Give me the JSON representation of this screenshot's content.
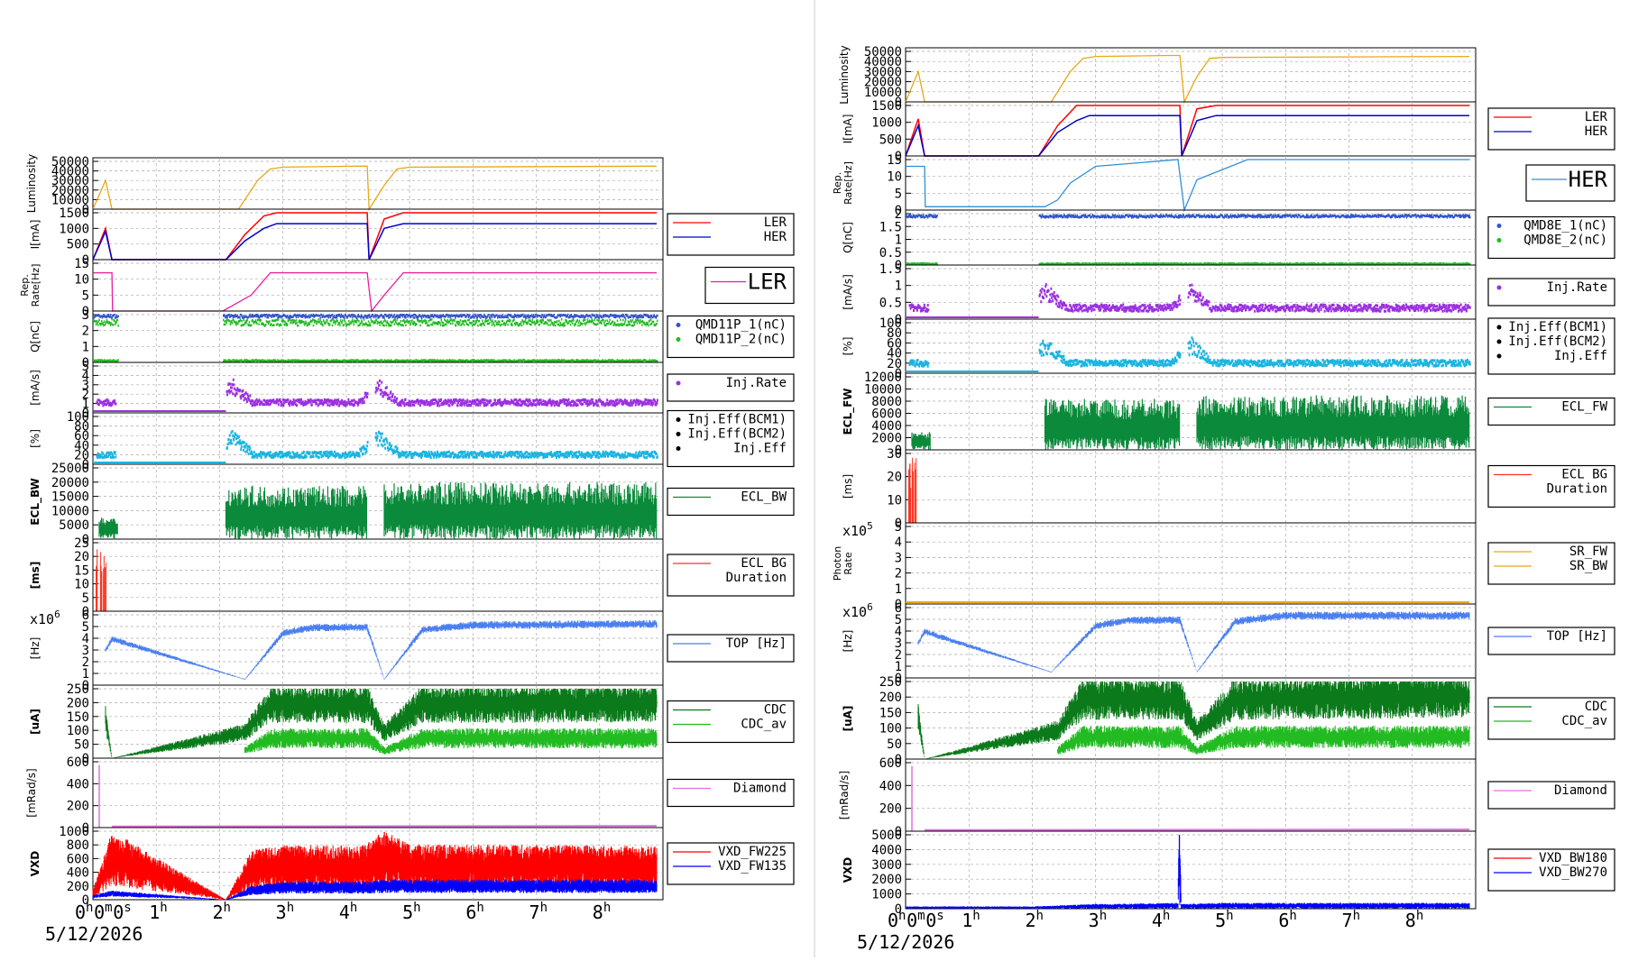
{
  "colors": {
    "luminosity": "#e6a817",
    "ler": "#ff0000",
    "her": "#0000cc",
    "rep_ler": "#e81c9b",
    "rep_her": "#2f8fd8",
    "charge1": "#3355cc",
    "charge2": "#22bb22",
    "inj_rate": "#9b30e0",
    "inj_eff": "#1ab4e0",
    "ecl": "#0a8a3a",
    "ecl_bg": "#ff3322",
    "top": "#4a7ff0",
    "cdc": "#22bb22",
    "cdc_av": "#0a7a1a",
    "diamond": "#e070e0",
    "vxd_red": "#ff0000",
    "vxd_blue": "#0000ff",
    "sr_fw": "#e6a817",
    "grid": "#aaaaaa",
    "frame": "#000000"
  },
  "x_axis": {
    "tick_labels": [
      "0h0m0s",
      "1h",
      "2h",
      "3h",
      "4h",
      "5h",
      "6h",
      "7h",
      "8h"
    ],
    "date": "5/12/2026"
  },
  "left_chart": {
    "panels": [
      {
        "id": "lum",
        "ylabel": "Luminosity",
        "yticks": [
          "50000",
          "40000",
          "30000",
          "20000",
          "10000",
          "0"
        ],
        "legend": [],
        "series": [
          {
            "key": "luminosity",
            "color": "#e6a817"
          }
        ]
      },
      {
        "id": "cur",
        "ylabel": "I[mA]",
        "yticks": [
          "1500",
          "1000",
          "500",
          "0"
        ],
        "legend": [
          "LER",
          "HER"
        ],
        "series": [
          {
            "key": "ler",
            "color": "#ff0000"
          },
          {
            "key": "her",
            "color": "#0000cc"
          }
        ]
      },
      {
        "id": "rep",
        "ylabel": "Rep. Rate[Hz]",
        "yticks": [
          "15",
          "10",
          "5",
          "0"
        ],
        "legend": [
          "LER"
        ],
        "legend_big": true,
        "series": [
          {
            "key": "rep",
            "color": "#e81c9b"
          }
        ]
      },
      {
        "id": "q",
        "ylabel": "Q[nC]",
        "yticks": [
          "3",
          "2",
          "1",
          "0"
        ],
        "legend": [
          "QMD11P_1(nC)",
          "QMD11P_2(nC)"
        ],
        "series": [
          {
            "key": "q1",
            "color": "#3355cc"
          },
          {
            "key": "q2",
            "color": "#22bb22"
          }
        ]
      },
      {
        "id": "injr",
        "ylabel": "[mA/s]",
        "yticks": [
          "5",
          "4",
          "3",
          "2",
          "1",
          "0"
        ],
        "legend": [
          "Inj.Rate"
        ],
        "series": [
          {
            "key": "injr",
            "color": "#9b30e0"
          }
        ]
      },
      {
        "id": "inje",
        "ylabel": "[%]",
        "yticks": [
          "100",
          "80",
          "60",
          "40",
          "20",
          "0"
        ],
        "legend": [
          "Inj.Eff(BCM1)",
          "Inj.Eff(BCM2)",
          "Inj.Eff"
        ],
        "series": [
          {
            "key": "inje",
            "color": "#1ab4e0"
          }
        ]
      },
      {
        "id": "ecl",
        "ylabel": "ECL_BW",
        "yticks": [
          "25000",
          "20000",
          "15000",
          "10000",
          "5000",
          "0"
        ],
        "legend": [
          "ECL_BW"
        ],
        "series": [
          {
            "key": "ecl",
            "color": "#0a8a3a"
          }
        ]
      },
      {
        "id": "eclbg",
        "ylabel": "[ms]",
        "yticks": [
          "25",
          "20",
          "15",
          "10",
          "5",
          "0"
        ],
        "legend": [
          "ECL BG",
          "Duration"
        ],
        "series": [
          {
            "key": "eclbg",
            "color": "#ff3322"
          }
        ]
      },
      {
        "id": "top",
        "ylabel": "[Hz]",
        "yticks": [
          "6",
          "5",
          "4",
          "3",
          "2",
          "1",
          "0"
        ],
        "exponent": "x10^6",
        "legend": [
          "TOP [Hz]"
        ],
        "series": [
          {
            "key": "top",
            "color": "#4a7ff0"
          }
        ]
      },
      {
        "id": "cdc",
        "ylabel": "[uA]",
        "yticks": [
          "250",
          "200",
          "150",
          "100",
          "50",
          "0"
        ],
        "legend": [
          "CDC",
          "CDC_av"
        ],
        "series": [
          {
            "key": "cdc",
            "color": "#0a7a1a"
          },
          {
            "key": "cdcav",
            "color": "#22bb22"
          }
        ]
      },
      {
        "id": "dia",
        "ylabel": "[mRad/s]",
        "yticks": [
          "600",
          "400",
          "200",
          "0"
        ],
        "legend": [
          "Diamond"
        ],
        "series": [
          {
            "key": "dia",
            "color": "#e070e0"
          }
        ]
      },
      {
        "id": "vxd",
        "ylabel": "VXD",
        "yticks": [
          "1000",
          "800",
          "600",
          "400",
          "200",
          "0"
        ],
        "legend": [
          "VXD_FW225",
          "VXD_FW135"
        ],
        "series": [
          {
            "key": "vxdr",
            "color": "#ff0000"
          },
          {
            "key": "vxdb",
            "color": "#0000ff"
          }
        ]
      }
    ]
  },
  "right_chart": {
    "panels": [
      {
        "id": "lum",
        "ylabel": "Luminosity",
        "yticks": [
          "50000",
          "40000",
          "30000",
          "20000",
          "10000",
          "0"
        ],
        "legend": [],
        "series": [
          {
            "key": "luminosity",
            "color": "#e6a817"
          }
        ]
      },
      {
        "id": "cur",
        "ylabel": "I[mA]",
        "yticks": [
          "1500",
          "1000",
          "500",
          "0"
        ],
        "legend": [
          "LER",
          "HER"
        ],
        "series": [
          {
            "key": "ler",
            "color": "#ff0000"
          },
          {
            "key": "her",
            "color": "#0000cc"
          }
        ]
      },
      {
        "id": "rep",
        "ylabel": "Rep. Rate[Hz]",
        "yticks": [
          "15",
          "10",
          "5",
          "0"
        ],
        "legend": [
          "HER"
        ],
        "legend_big": true,
        "series": [
          {
            "key": "rep",
            "color": "#2f8fd8"
          }
        ]
      },
      {
        "id": "q",
        "ylabel": "Q[nC]",
        "yticks": [
          "2",
          "1.5",
          "1",
          "0.5",
          "0"
        ],
        "legend": [
          "QMD8E_1(nC)",
          "QMD8E_2(nC)"
        ],
        "series": [
          {
            "key": "q1",
            "color": "#3355cc"
          },
          {
            "key": "q2",
            "color": "#22bb22"
          }
        ]
      },
      {
        "id": "injr",
        "ylabel": "[mA/s]",
        "yticks": [
          "1.5",
          "1",
          "0.5",
          "0"
        ],
        "legend": [
          "Inj.Rate"
        ],
        "series": [
          {
            "key": "injr",
            "color": "#9b30e0"
          }
        ]
      },
      {
        "id": "inje",
        "ylabel": "[%]",
        "yticks": [
          "100",
          "80",
          "60",
          "40",
          "20",
          "0"
        ],
        "legend": [
          "Inj.Eff(BCM1)",
          "Inj.Eff(BCM2)",
          "Inj.Eff"
        ],
        "series": [
          {
            "key": "inje",
            "color": "#1ab4e0"
          }
        ]
      },
      {
        "id": "ecl",
        "ylabel": "ECL_FW",
        "yticks": [
          "12000",
          "10000",
          "8000",
          "6000",
          "4000",
          "2000",
          "0"
        ],
        "legend": [
          "ECL_FW"
        ],
        "series": [
          {
            "key": "ecl",
            "color": "#0a8a3a"
          }
        ]
      },
      {
        "id": "eclbg",
        "ylabel": "[ms]",
        "yticks": [
          "30",
          "20",
          "10",
          "0"
        ],
        "legend": [
          "ECL BG",
          "Duration"
        ],
        "series": [
          {
            "key": "eclbg",
            "color": "#ff3322"
          }
        ]
      },
      {
        "id": "photon",
        "ylabel": "Photon Rate",
        "yticks": [
          "5",
          "4",
          "3",
          "2",
          "1",
          "0"
        ],
        "exponent": "x10^5",
        "legend": [
          "SR_FW",
          "SR_BW"
        ],
        "series": [
          {
            "key": "sr",
            "color": "#e6a817"
          }
        ]
      },
      {
        "id": "top",
        "ylabel": "[Hz]",
        "yticks": [
          "6",
          "5",
          "4",
          "3",
          "2",
          "1",
          "0"
        ],
        "exponent": "x10^6",
        "legend": [
          "TOP [Hz]"
        ],
        "series": [
          {
            "key": "top",
            "color": "#4a7ff0"
          }
        ]
      },
      {
        "id": "cdc",
        "ylabel": "[uA]",
        "yticks": [
          "250",
          "200",
          "150",
          "100",
          "50",
          "0"
        ],
        "legend": [
          "CDC",
          "CDC_av"
        ],
        "series": [
          {
            "key": "cdc",
            "color": "#0a7a1a"
          },
          {
            "key": "cdcav",
            "color": "#22bb22"
          }
        ]
      },
      {
        "id": "dia",
        "ylabel": "[mRad/s]",
        "yticks": [
          "600",
          "400",
          "200",
          "0"
        ],
        "legend": [
          "Diamond"
        ],
        "series": [
          {
            "key": "dia",
            "color": "#e070e0"
          }
        ]
      },
      {
        "id": "vxd",
        "ylabel": "VXD",
        "yticks": [
          "5000",
          "4000",
          "3000",
          "2000",
          "1000",
          "0"
        ],
        "legend": [
          "VXD_BW180",
          "VXD_BW270"
        ],
        "series": [
          {
            "key": "vxdr",
            "color": "#ff0000"
          },
          {
            "key": "vxdb",
            "color": "#0000ff"
          }
        ]
      }
    ]
  },
  "chart_data": [
    {
      "type": "line",
      "xlim_hours": [
        0,
        9
      ],
      "panels": {
        "luminosity": {
          "x": [
            0,
            0.2,
            0.3,
            2.3,
            2.6,
            2.8,
            3.0,
            4.2,
            4.33,
            4.36,
            4.6,
            4.8,
            5.0,
            8.9
          ],
          "y": [
            0,
            30000,
            0,
            0,
            30000,
            42000,
            44000,
            45000,
            45000,
            0,
            25000,
            42000,
            44000,
            45000
          ]
        },
        "ler": {
          "x": [
            0,
            0.2,
            0.3,
            2.1,
            2.4,
            2.7,
            2.9,
            4.33,
            4.36,
            4.6,
            4.9,
            8.9
          ],
          "y": [
            0,
            1000,
            0,
            0,
            800,
            1400,
            1550,
            1550,
            0,
            1300,
            1550,
            1550
          ]
        },
        "her": {
          "x": [
            0,
            0.2,
            0.3,
            2.1,
            2.4,
            2.7,
            2.9,
            4.33,
            4.36,
            4.6,
            4.9,
            8.9
          ],
          "y": [
            0,
            900,
            0,
            0,
            600,
            1000,
            1150,
            1150,
            0,
            1000,
            1150,
            1150
          ]
        },
        "rep_ler": {
          "x": [
            0,
            0.3,
            0.31,
            2.05,
            2.5,
            2.8,
            4.33,
            4.4,
            4.6,
            4.9,
            8.9
          ],
          "y": [
            12,
            12,
            0,
            0,
            5,
            12,
            12,
            0,
            5,
            12,
            12
          ]
        },
        "top": {
          "x": [
            0.2,
            0.3,
            2.4,
            3.0,
            3.5,
            4.33,
            4.6,
            5.2,
            6.0,
            8.9
          ],
          "y": [
            3,
            4,
            0.5,
            4.5,
            5,
            5,
            0.5,
            4.8,
            5.2,
            5.3
          ]
        },
        "cdc": {
          "x": [
            0.2,
            0.3,
            2.4,
            2.8,
            4.33,
            4.6,
            5.2,
            8.9
          ],
          "y": [
            150,
            0,
            100,
            210,
            210,
            100,
            210,
            215
          ]
        },
        "cdc_av": {
          "x": [
            2.4,
            2.8,
            4.33,
            4.6,
            5.2,
            8.9
          ],
          "y": [
            30,
            80,
            80,
            30,
            80,
            80
          ]
        },
        "vxd_fw135": {
          "x": [
            0,
            0.3,
            2.1,
            2.5,
            3.0,
            4.3,
            4.6,
            5.0,
            8.9
          ],
          "y": [
            100,
            700,
            0,
            500,
            550,
            550,
            700,
            560,
            540
          ]
        },
        "vxd_fw225": {
          "x": [
            0,
            0.3,
            2.1,
            2.5,
            3.0,
            4.3,
            4.6,
            5.0,
            8.9
          ],
          "y": [
            50,
            100,
            0,
            150,
            200,
            200,
            220,
            220,
            220
          ]
        }
      }
    },
    {
      "type": "line",
      "xlim_hours": [
        0,
        9
      ],
      "panels": {
        "luminosity": {
          "x": [
            0,
            0.2,
            0.3,
            2.3,
            2.6,
            2.8,
            3.0,
            4.2,
            4.33,
            4.4,
            4.6,
            4.8,
            5.0,
            8.9
          ],
          "y": [
            0,
            30000,
            0,
            0,
            30000,
            43000,
            45000,
            46000,
            46000,
            0,
            25000,
            43000,
            44000,
            45000
          ]
        },
        "ler": {
          "x": [
            0,
            0.2,
            0.3,
            2.1,
            2.4,
            2.7,
            2.9,
            4.33,
            4.36,
            4.6,
            4.9,
            8.9
          ],
          "y": [
            0,
            1100,
            0,
            0,
            900,
            1500,
            1650,
            1650,
            0,
            1400,
            1650,
            1650
          ]
        },
        "her": {
          "x": [
            0,
            0.2,
            0.3,
            2.1,
            2.4,
            2.7,
            2.9,
            4.33,
            4.36,
            4.6,
            4.9,
            8.9
          ],
          "y": [
            0,
            900,
            0,
            0,
            700,
            1050,
            1200,
            1200,
            0,
            1050,
            1200,
            1200
          ]
        },
        "rep_her": {
          "x": [
            0,
            0.3,
            0.31,
            2.2,
            2.4,
            2.6,
            3.0,
            4.3,
            4.4,
            4.6,
            5.4,
            8.9
          ],
          "y": [
            13,
            13,
            1,
            1,
            3,
            8,
            13,
            15,
            0,
            9,
            15,
            15
          ]
        },
        "top": {
          "x": [
            0.2,
            0.3,
            2.3,
            3.0,
            3.5,
            4.33,
            4.6,
            5.2,
            6.0,
            8.9
          ],
          "y": [
            3,
            4,
            0.5,
            4.5,
            5,
            5,
            0.5,
            4.9,
            5.4,
            5.4
          ]
        },
        "cdc": {
          "x": [
            0.2,
            0.3,
            2.4,
            2.8,
            4.33,
            4.6,
            5.2,
            8.9
          ],
          "y": [
            150,
            0,
            100,
            210,
            210,
            100,
            210,
            220
          ]
        },
        "cdc_av": {
          "x": [
            2.4,
            2.8,
            4.33,
            4.6,
            5.2,
            8.9
          ],
          "y": [
            30,
            80,
            80,
            30,
            80,
            80
          ]
        },
        "vxd_bw270": {
          "x": [
            0,
            2.0,
            3.0,
            4.3,
            4.32,
            4.35,
            5.0,
            8.9
          ],
          "y": [
            100,
            100,
            200,
            250,
            4700,
            200,
            250,
            250
          ]
        }
      }
    }
  ]
}
